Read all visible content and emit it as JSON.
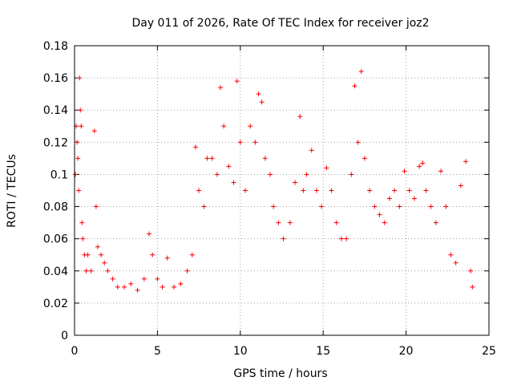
{
  "chart_data": {
    "type": "scatter",
    "title": "Day 011 of 2026, Rate Of TEC Index for receiver joz2",
    "xlabel": "GPS time / hours",
    "ylabel": "ROTI / TECUs",
    "xlim": [
      0,
      25
    ],
    "ylim": [
      0,
      0.18
    ],
    "xticks": [
      0,
      5,
      10,
      15,
      20,
      25
    ],
    "xtick_labels": [
      "0",
      "5",
      "10",
      "15",
      "20",
      "25"
    ],
    "yticks": [
      0,
      0.02,
      0.04,
      0.06,
      0.08,
      0.1,
      0.12,
      0.14,
      0.16,
      0.18
    ],
    "ytick_labels": [
      "0",
      "0.02",
      "0.04",
      "0.06",
      "0.08",
      "0.1",
      "0.12",
      "0.14",
      "0.16",
      "0.18"
    ],
    "grid": true,
    "marker": "+",
    "marker_color": "#ff0000",
    "series": [
      {
        "name": "ROTI",
        "x": [
          0.05,
          0.1,
          0.15,
          0.2,
          0.25,
          0.3,
          0.35,
          0.4,
          0.45,
          0.5,
          0.6,
          0.7,
          0.8,
          1.0,
          1.2,
          1.3,
          1.4,
          1.6,
          1.8,
          2.0,
          2.3,
          2.6,
          3.0,
          3.4,
          3.8,
          4.2,
          4.5,
          4.7,
          5.0,
          5.3,
          5.6,
          6.0,
          6.4,
          6.8,
          7.1,
          7.3,
          7.5,
          7.8,
          8.0,
          8.3,
          8.6,
          8.8,
          9.0,
          9.3,
          9.6,
          9.8,
          10.0,
          10.3,
          10.6,
          10.9,
          11.1,
          11.3,
          11.5,
          11.8,
          12.0,
          12.3,
          12.6,
          13.0,
          13.3,
          13.6,
          13.8,
          14.0,
          14.3,
          14.6,
          14.9,
          15.2,
          15.5,
          15.8,
          16.1,
          16.4,
          16.7,
          16.9,
          17.1,
          17.3,
          17.5,
          17.8,
          18.1,
          18.4,
          18.7,
          19.0,
          19.3,
          19.6,
          19.9,
          20.2,
          20.5,
          20.8,
          21.0,
          21.2,
          21.5,
          21.8,
          22.1,
          22.4,
          22.7,
          23.0,
          23.3,
          23.6,
          23.9,
          24.0
        ],
        "y": [
          0.1,
          0.13,
          0.12,
          0.11,
          0.09,
          0.16,
          0.14,
          0.13,
          0.07,
          0.06,
          0.05,
          0.04,
          0.05,
          0.04,
          0.127,
          0.08,
          0.055,
          0.05,
          0.045,
          0.04,
          0.035,
          0.03,
          0.03,
          0.032,
          0.028,
          0.035,
          0.063,
          0.05,
          0.035,
          0.03,
          0.048,
          0.03,
          0.032,
          0.04,
          0.05,
          0.117,
          0.09,
          0.08,
          0.11,
          0.11,
          0.1,
          0.154,
          0.13,
          0.105,
          0.095,
          0.158,
          0.12,
          0.09,
          0.13,
          0.12,
          0.15,
          0.145,
          0.11,
          0.1,
          0.08,
          0.07,
          0.06,
          0.07,
          0.095,
          0.136,
          0.09,
          0.1,
          0.115,
          0.09,
          0.08,
          0.104,
          0.09,
          0.07,
          0.06,
          0.06,
          0.1,
          0.155,
          0.12,
          0.164,
          0.11,
          0.09,
          0.08,
          0.075,
          0.07,
          0.085,
          0.09,
          0.08,
          0.102,
          0.09,
          0.085,
          0.105,
          0.107,
          0.09,
          0.08,
          0.07,
          0.102,
          0.08,
          0.05,
          0.045,
          0.093,
          0.108,
          0.04,
          0.03
        ]
      }
    ]
  }
}
